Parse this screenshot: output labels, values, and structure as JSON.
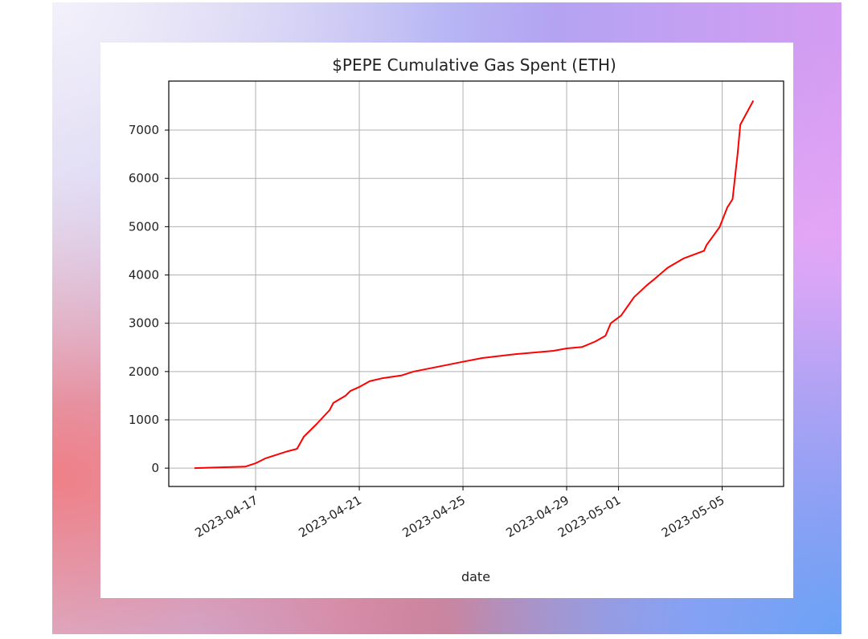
{
  "chart_data": {
    "type": "line",
    "title": "$PEPE Cumulative Gas Spent (ETH)",
    "xlabel": "date",
    "ylabel": "",
    "x_unit": "days since 2023-04-17",
    "x": [
      -2.36,
      -0.4,
      0,
      0.37,
      1.24,
      1.6,
      1.86,
      2.33,
      2.85,
      3.0,
      3.47,
      3.66,
      4.0,
      4.4,
      4.87,
      5.64,
      6.1,
      7.04,
      7.97,
      8.74,
      10.0,
      11.5,
      12.0,
      12.6,
      13.1,
      13.5,
      13.7,
      14.1,
      14.6,
      15.1,
      15.4,
      15.9,
      16.5,
      17.3,
      17.4,
      17.9,
      18.2,
      18.4,
      18.6,
      18.7,
      19.2
    ],
    "series": [
      {
        "name": "cumulative gas (ETH)",
        "color": "#ff0000",
        "values": [
          0,
          30,
          100,
          200,
          350,
          400,
          650,
          900,
          1200,
          1350,
          1500,
          1600,
          1680,
          1800,
          1860,
          1920,
          2000,
          2100,
          2200,
          2280,
          2360,
          2430,
          2480,
          2510,
          2620,
          2740,
          3000,
          3160,
          3540,
          3790,
          3920,
          4150,
          4340,
          4500,
          4620,
          4990,
          5400,
          5570,
          6530,
          7110,
          7610
        ]
      }
    ],
    "xticks": [
      {
        "value": 0,
        "label": "2023-04-17"
      },
      {
        "value": 4,
        "label": "2023-04-21"
      },
      {
        "value": 8,
        "label": "2023-04-25"
      },
      {
        "value": 12,
        "label": "2023-04-29"
      },
      {
        "value": 14,
        "label": "2023-05-01"
      },
      {
        "value": 18,
        "label": "2023-05-05"
      }
    ],
    "yticks": [
      {
        "value": 0,
        "label": "0"
      },
      {
        "value": 1000,
        "label": "1000"
      },
      {
        "value": 2000,
        "label": "2000"
      },
      {
        "value": 3000,
        "label": "3000"
      },
      {
        "value": 4000,
        "label": "4000"
      },
      {
        "value": 5000,
        "label": "5000"
      },
      {
        "value": 6000,
        "label": "6000"
      },
      {
        "value": 7000,
        "label": "7000"
      }
    ],
    "xlim": [
      -3.35,
      20.37
    ],
    "ylim": [
      -380,
      8015
    ],
    "grid": true,
    "legend": "none"
  }
}
